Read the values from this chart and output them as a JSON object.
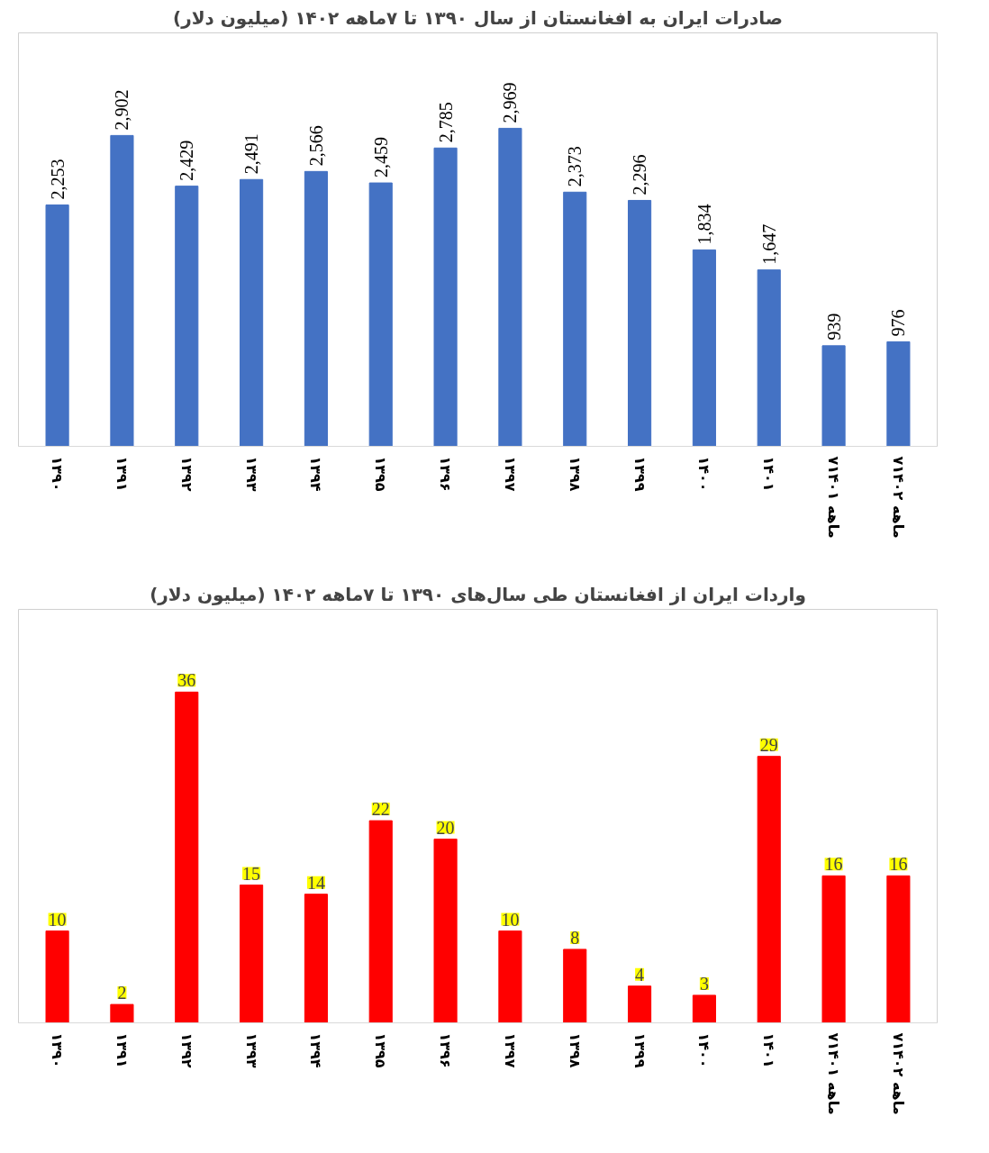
{
  "chart_data": [
    {
      "type": "bar",
      "title": "صادرات ایران به افغانستان از سال ۱۳۹۰ تا ۷ماهه ۱۴۰۲ (میلیون دلار)",
      "categories": [
        "۱۳۹۰",
        "۱۳۹۱",
        "۱۳۹۲",
        "۱۳۹۳",
        "۱۳۹۴",
        "۱۳۹۵",
        "۱۳۹۶",
        "۱۳۹۷",
        "۱۳۹۸",
        "۱۳۹۹",
        "۱۴۰۰",
        "۱۴۰۱",
        "۷ماهه ۱۴۰۱",
        "۷ماهه ۱۴۰۲"
      ],
      "values": [
        2253,
        2902,
        2429,
        2491,
        2566,
        2459,
        2785,
        2969,
        2373,
        2296,
        1834,
        1647,
        939,
        976
      ],
      "value_labels": [
        "2,253",
        "2,902",
        "2,429",
        "2,491",
        "2,566",
        "2,459",
        "2,785",
        "2,969",
        "2,373",
        "2,296",
        "1,834",
        "1,647",
        "939",
        "976"
      ],
      "color": "#4472c4",
      "grid": false
    },
    {
      "type": "bar",
      "title": "واردات ایران از افغانستان طی سال‌های ۱۳۹۰ تا ۷ماهه ۱۴۰۲ (میلیون دلار)",
      "categories": [
        "۱۳۹۰",
        "۱۳۹۱",
        "۱۳۹۲",
        "۱۳۹۳",
        "۱۳۹۴",
        "۱۳۹۵",
        "۱۳۹۶",
        "۱۳۹۷",
        "۱۳۹۸",
        "۱۳۹۹",
        "۱۴۰۰",
        "۱۴۰۱",
        "۷ماهه ۱۴۰۱",
        "۷ماهه ۱۴۰۲"
      ],
      "values": [
        10,
        2,
        36,
        15,
        14,
        22,
        20,
        10,
        8,
        4,
        3,
        29,
        16,
        16
      ],
      "data_labels": true,
      "color": "#ff0000",
      "grid": false
    }
  ]
}
